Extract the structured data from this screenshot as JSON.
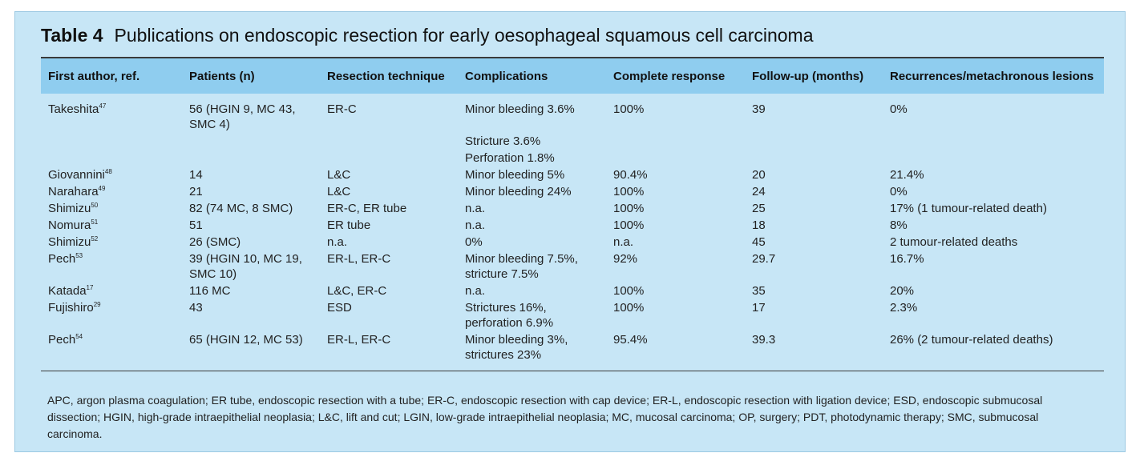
{
  "table": {
    "label": "Table 4",
    "title": "Publications on endoscopic resection for early oesophageal squamous cell carcinoma",
    "columns": [
      "First author, ref.",
      "Patients (n)",
      "Resection technique",
      "Complications",
      "Complete response",
      "Follow-up (months)",
      "Recurrences/metachronous lesions"
    ],
    "rows": [
      {
        "author": "Takeshita",
        "ref": "47",
        "patients": "56 (HGIN 9, MC 43, SMC 4)",
        "technique": "ER-C",
        "complications": "Minor bleeding 3.6%",
        "response": "100%",
        "followup": "39",
        "recurrences": "0%"
      },
      {
        "author": "",
        "ref": "",
        "patients": "",
        "technique": "",
        "complications": "Stricture 3.6%",
        "response": "",
        "followup": "",
        "recurrences": ""
      },
      {
        "author": "",
        "ref": "",
        "patients": "",
        "technique": "",
        "complications": "Perforation 1.8%",
        "response": "",
        "followup": "",
        "recurrences": ""
      },
      {
        "author": "Giovannini",
        "ref": "48",
        "patients": "14",
        "technique": "L&C",
        "complications": "Minor bleeding 5%",
        "response": "90.4%",
        "followup": "20",
        "recurrences": "21.4%"
      },
      {
        "author": "Narahara",
        "ref": "49",
        "patients": "21",
        "technique": "L&C",
        "complications": "Minor bleeding 24%",
        "response": "100%",
        "followup": "24",
        "recurrences": "0%"
      },
      {
        "author": "Shimizu",
        "ref": "50",
        "patients": "82 (74 MC, 8 SMC)",
        "technique": "ER-C, ER tube",
        "complications": "n.a.",
        "response": "100%",
        "followup": "25",
        "recurrences": "17% (1 tumour-related death)"
      },
      {
        "author": "Nomura",
        "ref": "51",
        "patients": "51",
        "technique": "ER tube",
        "complications": "n.a.",
        "response": "100%",
        "followup": "18",
        "recurrences": "8%"
      },
      {
        "author": "Shimizu",
        "ref": "52",
        "patients": "26 (SMC)",
        "technique": "n.a.",
        "complications": "0%",
        "response": "n.a.",
        "followup": "45",
        "recurrences": "2 tumour-related deaths"
      },
      {
        "author": "Pech",
        "ref": "53",
        "patients": "39 (HGIN 10, MC 19, SMC 10)",
        "technique": "ER-L, ER-C",
        "complications": "Minor bleeding 7.5%, stricture 7.5%",
        "response": "92%",
        "followup": "29.7",
        "recurrences": "16.7%"
      },
      {
        "author": "Katada",
        "ref": "17",
        "patients": "116 MC",
        "technique": "L&C, ER-C",
        "complications": "n.a.",
        "response": "100%",
        "followup": "35",
        "recurrences": "20%"
      },
      {
        "author": "Fujishiro",
        "ref": "29",
        "patients": "43",
        "technique": "ESD",
        "complications": "Strictures 16%, perforation 6.9%",
        "response": "100%",
        "followup": "17",
        "recurrences": "2.3%"
      },
      {
        "author": "Pech",
        "ref": "54",
        "patients": "65 (HGIN 12, MC 53)",
        "technique": "ER-L, ER-C",
        "complications": "Minor bleeding 3%, strictures 23%",
        "response": "95.4%",
        "followup": "39.3",
        "recurrences": "26% (2 tumour-related deaths)"
      }
    ],
    "footnote": "APC, argon plasma coagulation; ER tube, endoscopic resection with a tube; ER-C, endoscopic resection with cap device; ER-L, endoscopic resection with ligation device; ESD, endoscopic submucosal dissection; HGIN, high-grade intraepithelial neoplasia; L&C, lift and cut; LGIN, low-grade intraepithelial neoplasia; MC, mucosal carcinoma; OP, surgery; PDT, photodynamic therapy; SMC, submucosal carcinoma."
  },
  "colors": {
    "panel_bg": "#c7e6f6",
    "header_bg": "#8fcdef"
  }
}
